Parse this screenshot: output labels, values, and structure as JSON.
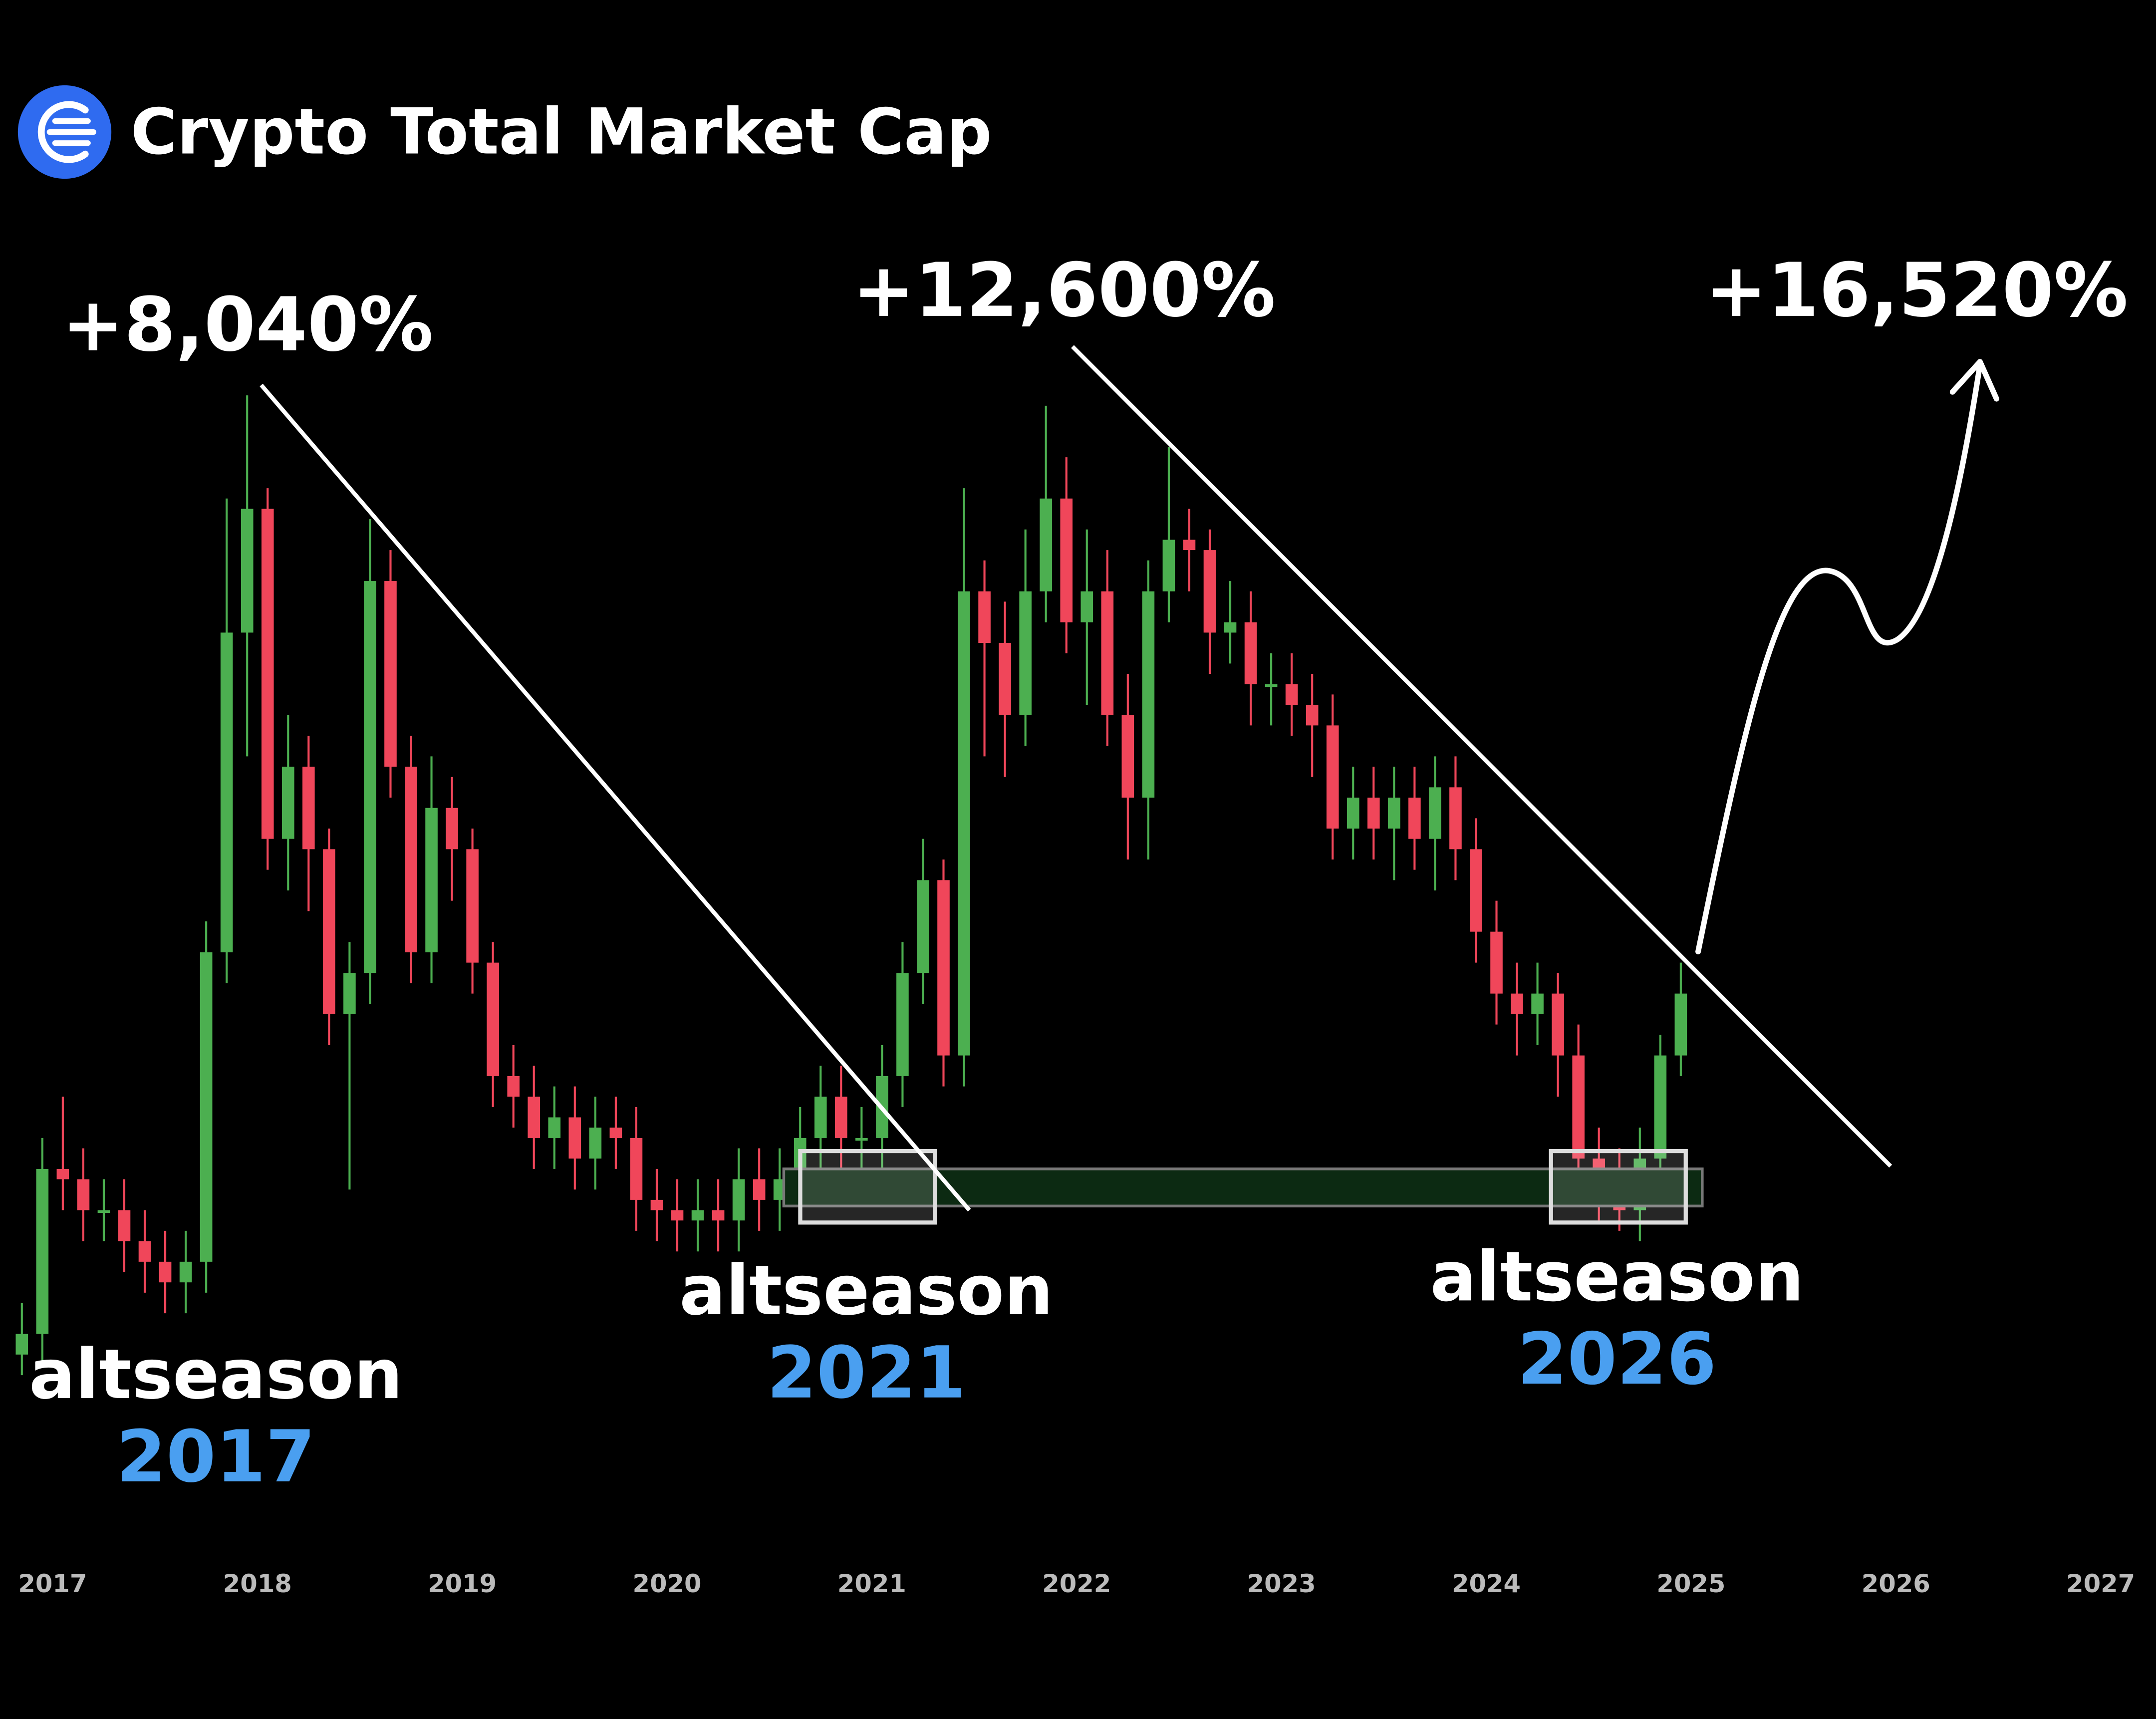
{
  "chart_data": {
    "type": "candlestick",
    "title": "Crypto Total Market Cap",
    "x": [
      2016.85,
      2016.95,
      2017.05,
      2017.15,
      2017.25,
      2017.35,
      2017.45,
      2017.55,
      2017.65,
      2017.75,
      2017.85,
      2017.95,
      2018.05,
      2018.15,
      2018.25,
      2018.35,
      2018.45,
      2018.55,
      2018.65,
      2018.75,
      2018.85,
      2018.95,
      2019.05,
      2019.15,
      2019.25,
      2019.35,
      2019.45,
      2019.55,
      2019.65,
      2019.75,
      2019.85,
      2019.95,
      2020.05,
      2020.15,
      2020.25,
      2020.35,
      2020.45,
      2020.55,
      2020.65,
      2020.75,
      2020.85,
      2020.95,
      2021.05,
      2021.15,
      2021.25,
      2021.35,
      2021.45,
      2021.55,
      2021.65,
      2021.75,
      2021.85,
      2021.95,
      2022.05,
      2022.15,
      2022.25,
      2022.35,
      2022.45,
      2022.55,
      2022.65,
      2022.75,
      2022.85,
      2022.95,
      2023.05,
      2023.15,
      2023.25,
      2023.35,
      2023.45,
      2023.55,
      2023.65,
      2023.75,
      2023.85,
      2023.95,
      2024.05,
      2024.15,
      2024.25,
      2024.35,
      2024.45,
      2024.55,
      2024.65,
      2024.75,
      2024.85,
      2024.95
    ],
    "open": [
      2,
      4,
      20,
      19,
      16,
      16,
      13,
      11,
      9,
      11,
      41,
      72,
      84,
      52,
      59,
      51,
      35,
      39,
      77,
      59,
      41,
      55,
      51,
      40,
      29,
      27,
      23,
      25,
      21,
      24,
      23,
      17,
      16,
      15,
      16,
      15,
      19,
      17,
      19,
      23,
      27,
      23,
      23,
      29,
      39,
      48,
      31,
      76,
      71,
      64,
      76,
      85,
      73,
      76,
      64,
      56,
      76,
      81,
      80,
      72,
      73,
      67,
      67,
      65,
      63,
      53,
      56,
      53,
      56,
      52,
      57,
      51,
      43,
      37,
      35,
      37,
      31,
      21,
      20,
      16,
      21,
      31
    ],
    "high": [
      7,
      23,
      27,
      22,
      19,
      19,
      16,
      14,
      14,
      44,
      85,
      95,
      86,
      64,
      62,
      53,
      42,
      83,
      80,
      62,
      60,
      58,
      53,
      42,
      32,
      30,
      28,
      28,
      27,
      27,
      26,
      20,
      19,
      19,
      19,
      22,
      22,
      22,
      26,
      30,
      30,
      26,
      32,
      42,
      52,
      50,
      86,
      79,
      75,
      82,
      94,
      89,
      82,
      80,
      68,
      79,
      90,
      84,
      82,
      77,
      76,
      70,
      70,
      68,
      66,
      59,
      59,
      59,
      59,
      60,
      60,
      54,
      46,
      40,
      40,
      39,
      34,
      24,
      22,
      24,
      33,
      40
    ],
    "low": [
      0,
      1,
      16,
      13,
      13,
      10,
      8,
      6,
      6,
      8,
      38,
      60,
      49,
      47,
      45,
      32,
      18,
      36,
      56,
      38,
      38,
      46,
      37,
      26,
      24,
      20,
      20,
      18,
      18,
      20,
      14,
      13,
      12,
      12,
      12,
      12,
      14,
      14,
      16,
      20,
      20,
      17,
      20,
      26,
      36,
      28,
      28,
      60,
      58,
      61,
      73,
      70,
      65,
      61,
      50,
      50,
      73,
      76,
      68,
      69,
      63,
      63,
      62,
      58,
      50,
      50,
      50,
      48,
      49,
      47,
      48,
      40,
      34,
      31,
      32,
      27,
      18,
      15,
      14,
      13,
      18,
      29
    ],
    "close": [
      4,
      20,
      19,
      16,
      16,
      13,
      11,
      9,
      11,
      41,
      72,
      84,
      52,
      59,
      51,
      35,
      39,
      77,
      59,
      41,
      55,
      51,
      40,
      29,
      27,
      23,
      25,
      21,
      24,
      23,
      17,
      16,
      15,
      16,
      15,
      19,
      17,
      19,
      23,
      27,
      23,
      23,
      29,
      39,
      48,
      31,
      76,
      71,
      64,
      76,
      85,
      73,
      76,
      64,
      56,
      76,
      81,
      80,
      72,
      73,
      67,
      67,
      65,
      63,
      53,
      56,
      53,
      56,
      52,
      57,
      51,
      43,
      37,
      35,
      37,
      31,
      21,
      20,
      16,
      21,
      31,
      37
    ],
    "up_color": "#4caf50",
    "down_color": "#f0465a",
    "xlim": [
      2016.75,
      2027.25
    ],
    "xticks": [
      2017,
      2018,
      2019,
      2020,
      2021,
      2022,
      2023,
      2024,
      2025,
      2026,
      2027
    ],
    "ylim": [
      0,
      100
    ],
    "annotations": [
      "+8,040%",
      "+12,600%",
      "+16,520%"
    ],
    "altseasons": [
      {
        "label": "altseason",
        "year": "2017"
      },
      {
        "label": "altseason",
        "year": "2021"
      },
      {
        "label": "altseason",
        "year": "2026"
      }
    ]
  }
}
